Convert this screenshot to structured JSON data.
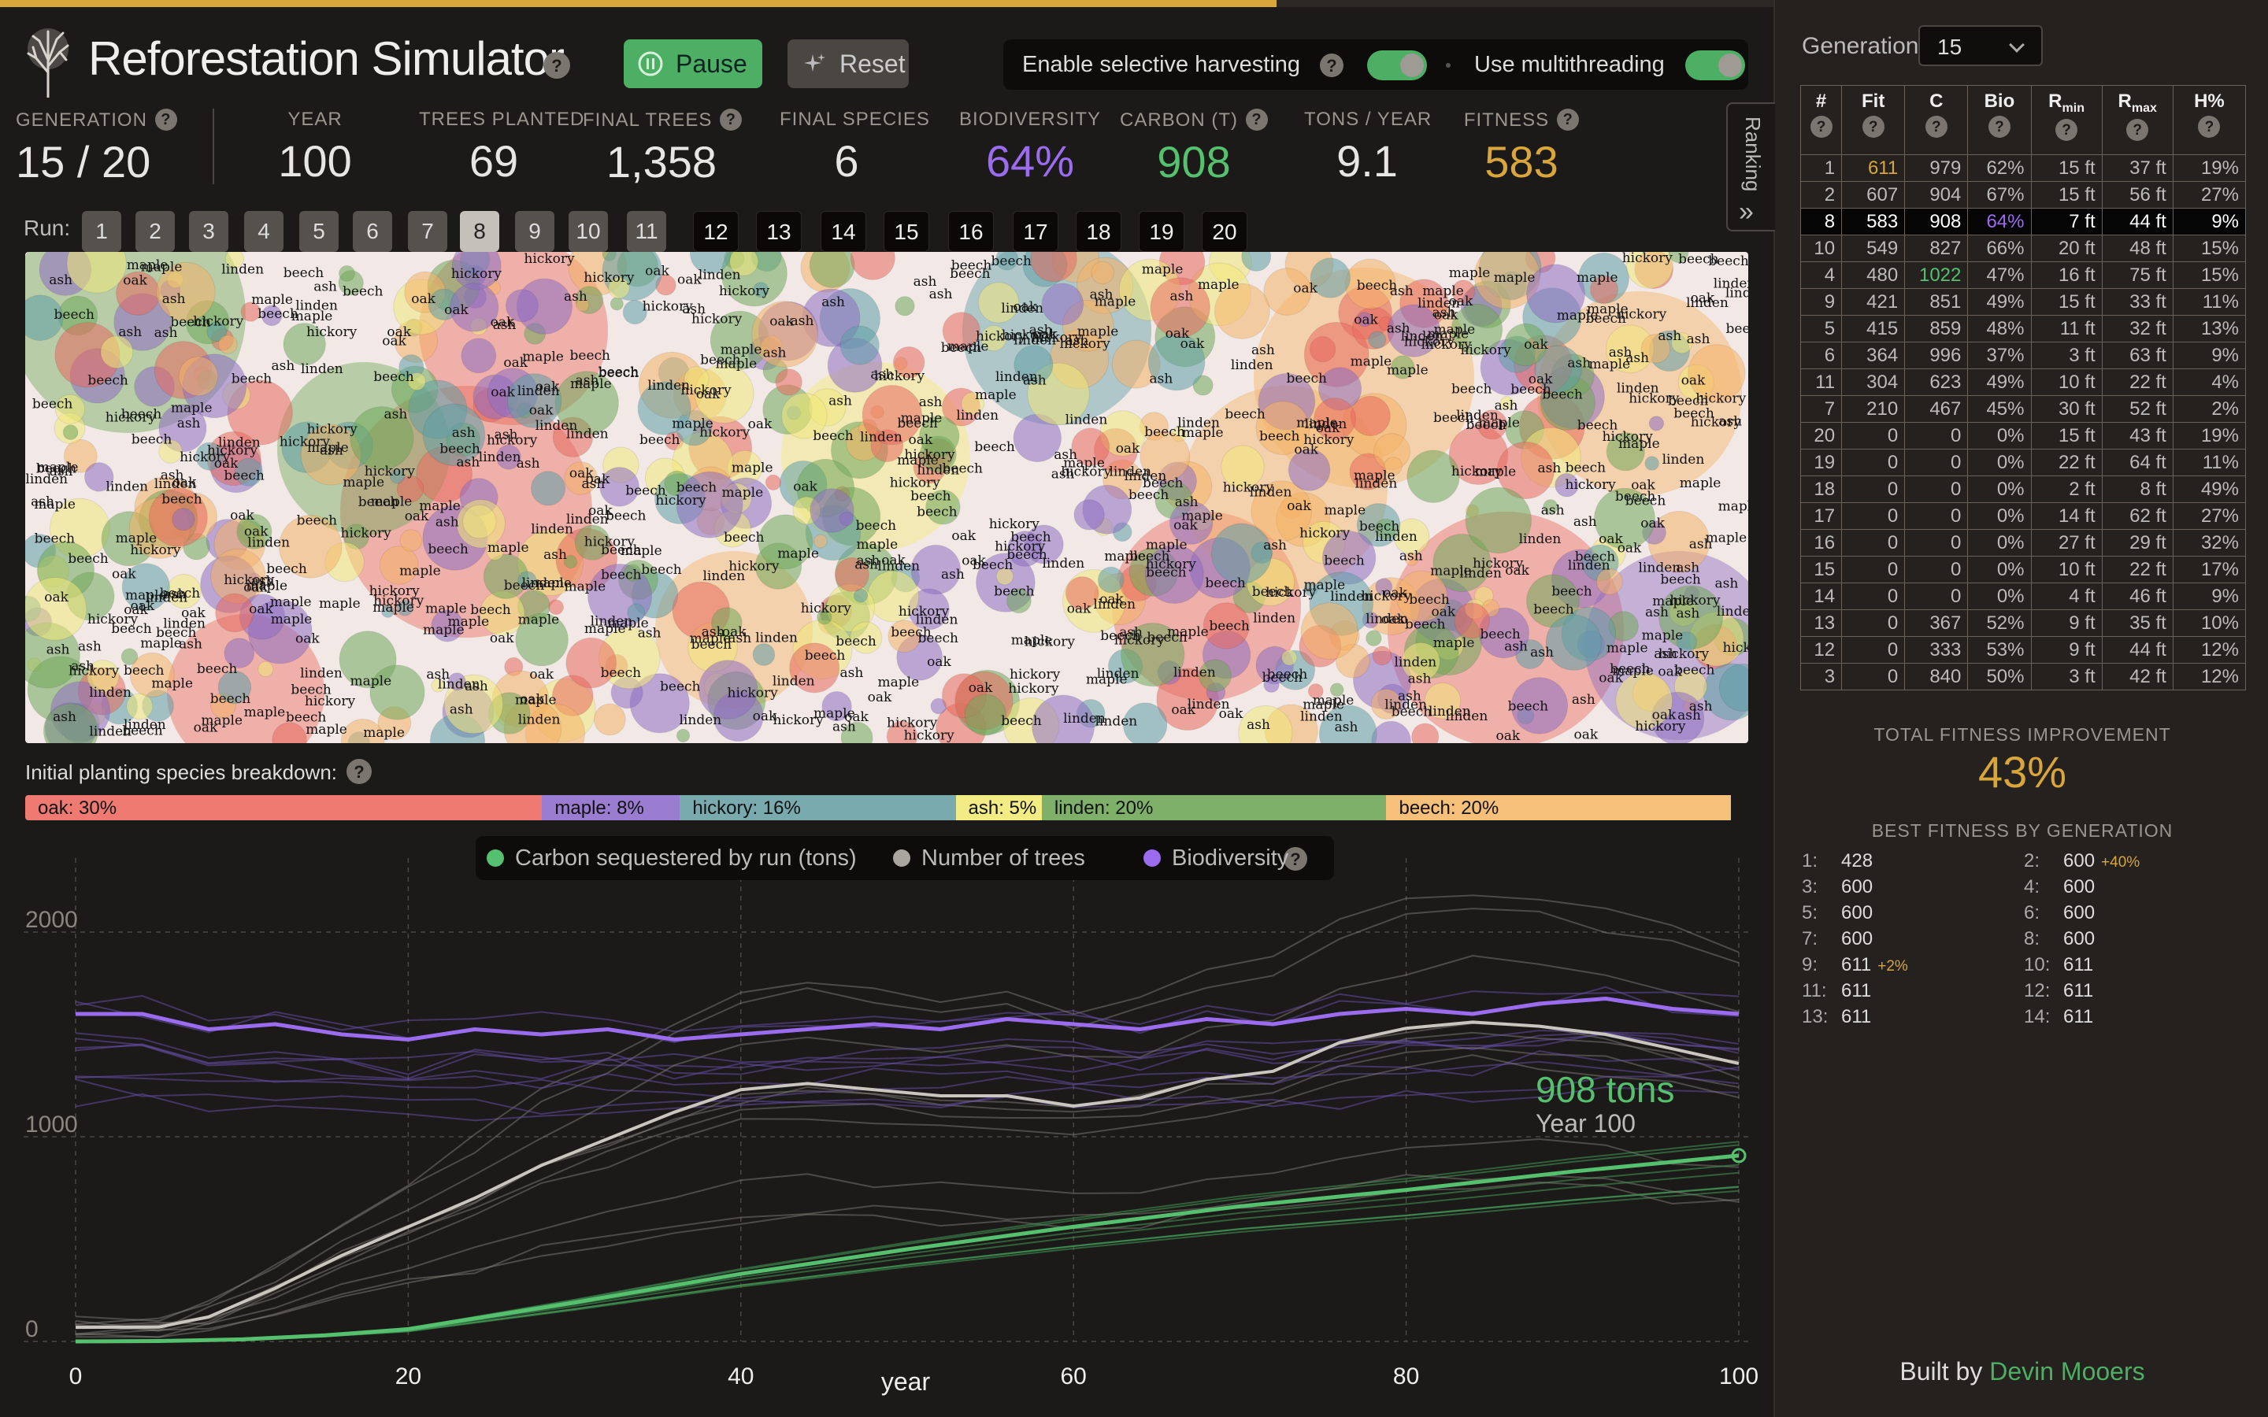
{
  "app": {
    "title": "Reforestation Simulator",
    "progress": 0.72
  },
  "controls": {
    "pause_label": "Pause",
    "reset_label": "Reset",
    "harvest_label": "Enable selective harvesting",
    "harvest_on": true,
    "thread_label": "Use multithreading",
    "thread_on": true
  },
  "stats": [
    {
      "label": "GENERATION",
      "value": "15 / 20",
      "help": true,
      "color": "#e8e6e2"
    },
    {
      "label": "YEAR",
      "value": "100",
      "help": false,
      "color": "#e8e6e2"
    },
    {
      "label": "TREES PLANTED",
      "value": "69",
      "help": false,
      "color": "#e8e6e2"
    },
    {
      "label": "FINAL TREES",
      "value": "1,358",
      "help": true,
      "color": "#e8e6e2"
    },
    {
      "label": "FINAL SPECIES",
      "value": "6",
      "help": false,
      "color": "#e8e6e2"
    },
    {
      "label": "BIODIVERSITY",
      "value": "64%",
      "help": false,
      "color": "#9b6cf0"
    },
    {
      "label": "CARBON (T)",
      "value": "908",
      "help": true,
      "color": "#55c06e"
    },
    {
      "label": "TONS / YEAR",
      "value": "9.1",
      "help": false,
      "color": "#e8e6e2"
    },
    {
      "label": "FITNESS",
      "value": "583",
      "help": true,
      "color": "#d9a63c"
    }
  ],
  "runs": {
    "label": "Run:",
    "items": [
      "1",
      "2",
      "3",
      "4",
      "5",
      "6",
      "7",
      "8",
      "9",
      "10",
      "11",
      "12",
      "13",
      "14",
      "15",
      "16",
      "17",
      "18",
      "19",
      "20"
    ],
    "current": "8",
    "done_count": 11
  },
  "species": [
    {
      "name": "oak",
      "color": "#e86a5e"
    },
    {
      "name": "maple",
      "color": "#8e6dc2"
    },
    {
      "name": "hickory",
      "color": "#5e9ea6"
    },
    {
      "name": "ash",
      "color": "#f1e87a"
    },
    {
      "name": "linden",
      "color": "#6fa85a"
    },
    {
      "name": "beech",
      "color": "#f4b367"
    }
  ],
  "breakdown": {
    "title": "Initial planting species breakdown:",
    "segments": [
      {
        "label": "oak: 30%",
        "pct": 30,
        "color": "#ee7a72"
      },
      {
        "label": "maple: 8%",
        "pct": 8,
        "color": "#9a7cd0"
      },
      {
        "label": "hickory: 16%",
        "pct": 16,
        "color": "#79aaae"
      },
      {
        "label": "ash: 5%",
        "pct": 5,
        "color": "#f3ec85"
      },
      {
        "label": "linden: 20%",
        "pct": 20,
        "color": "#7fb06a"
      },
      {
        "label": "beech: 20%",
        "pct": 20,
        "color": "#f6c07a"
      }
    ]
  },
  "legend": [
    {
      "label": "Carbon sequestered by run (tons)",
      "color": "#55c06e"
    },
    {
      "label": "Number of trees",
      "color": "#a9a6a0"
    },
    {
      "label": "Biodiversity",
      "color": "#9b6cf0"
    }
  ],
  "chart_data": {
    "type": "line",
    "xlabel": "year",
    "xticks": [
      0,
      20,
      40,
      60,
      80,
      100
    ],
    "yticks": [
      0,
      1000,
      2000
    ],
    "xlim": [
      0,
      100
    ],
    "ylim": [
      0,
      2000
    ],
    "annotation": {
      "value": "908 tons",
      "sub": "Year 100"
    },
    "series": [
      {
        "name": "Carbon sequestered by run (tons)",
        "color": "#55c06e",
        "x": [
          0,
          5,
          10,
          15,
          20,
          30,
          40,
          50,
          60,
          70,
          80,
          90,
          100
        ],
        "values": [
          0,
          2,
          10,
          30,
          60,
          190,
          330,
          450,
          560,
          660,
          740,
          830,
          908
        ]
      },
      {
        "name": "Number of trees",
        "color": "#c9c6c0",
        "x": [
          0,
          5,
          8,
          12,
          16,
          20,
          24,
          28,
          32,
          36,
          40,
          44,
          48,
          52,
          56,
          60,
          64,
          68,
          72,
          76,
          80,
          84,
          88,
          92,
          96,
          100
        ],
        "values": [
          69,
          70,
          120,
          260,
          420,
          560,
          700,
          860,
          990,
          1120,
          1230,
          1260,
          1230,
          1200,
          1200,
          1150,
          1190,
          1280,
          1320,
          1460,
          1530,
          1560,
          1540,
          1500,
          1430,
          1358
        ]
      },
      {
        "name": "Biodiversity",
        "color": "#9b6cf0",
        "x": [
          0,
          4,
          8,
          12,
          16,
          20,
          24,
          28,
          32,
          36,
          40,
          44,
          48,
          52,
          56,
          60,
          64,
          68,
          72,
          76,
          80,
          84,
          88,
          92,
          96,
          100
        ],
        "values": [
          64,
          64,
          61,
          62,
          60,
          59,
          61,
          60,
          61,
          59,
          60,
          61,
          62,
          61,
          63,
          62,
          61,
          63,
          62,
          64,
          65,
          64,
          66,
          67,
          65,
          64
        ]
      }
    ]
  },
  "sidebar": {
    "gen_label": "Generation:",
    "gen_value": "15",
    "ranking_tab": "Ranking",
    "table_headers": [
      "#",
      "Fit",
      "C",
      "Bio",
      "Rmin",
      "Rmax",
      "H%"
    ],
    "current_row": "8",
    "rows": [
      [
        "1",
        "611",
        "979",
        "62%",
        "15 ft",
        "37 ft",
        "19%"
      ],
      [
        "2",
        "607",
        "904",
        "67%",
        "15 ft",
        "56 ft",
        "27%"
      ],
      [
        "8",
        "583",
        "908",
        "64%",
        "7 ft",
        "44 ft",
        "9%"
      ],
      [
        "10",
        "549",
        "827",
        "66%",
        "20 ft",
        "48 ft",
        "15%"
      ],
      [
        "4",
        "480",
        "1022",
        "47%",
        "16 ft",
        "75 ft",
        "15%"
      ],
      [
        "9",
        "421",
        "851",
        "49%",
        "15 ft",
        "33 ft",
        "11%"
      ],
      [
        "5",
        "415",
        "859",
        "48%",
        "11 ft",
        "32 ft",
        "13%"
      ],
      [
        "6",
        "364",
        "996",
        "37%",
        "3 ft",
        "63 ft",
        "9%"
      ],
      [
        "11",
        "304",
        "623",
        "49%",
        "10 ft",
        "22 ft",
        "4%"
      ],
      [
        "7",
        "210",
        "467",
        "45%",
        "30 ft",
        "52 ft",
        "2%"
      ],
      [
        "20",
        "0",
        "0",
        "0%",
        "15 ft",
        "43 ft",
        "19%"
      ],
      [
        "19",
        "0",
        "0",
        "0%",
        "22 ft",
        "64 ft",
        "11%"
      ],
      [
        "18",
        "0",
        "0",
        "0%",
        "2 ft",
        "8 ft",
        "49%"
      ],
      [
        "17",
        "0",
        "0",
        "0%",
        "14 ft",
        "62 ft",
        "27%"
      ],
      [
        "16",
        "0",
        "0",
        "0%",
        "27 ft",
        "29 ft",
        "32%"
      ],
      [
        "15",
        "0",
        "0",
        "0%",
        "10 ft",
        "22 ft",
        "17%"
      ],
      [
        "14",
        "0",
        "0",
        "0%",
        "4 ft",
        "46 ft",
        "9%"
      ],
      [
        "13",
        "0",
        "367",
        "52%",
        "9 ft",
        "35 ft",
        "10%"
      ],
      [
        "12",
        "0",
        "333",
        "53%",
        "9 ft",
        "44 ft",
        "12%"
      ],
      [
        "3",
        "0",
        "840",
        "50%",
        "3 ft",
        "42 ft",
        "12%"
      ]
    ],
    "total_fitness_label": "TOTAL FITNESS IMPROVEMENT",
    "total_fitness_value": "43%",
    "best_fitness_label": "BEST FITNESS BY GENERATION",
    "best_fitness": [
      {
        "gen": "1:",
        "value": "428",
        "delta": ""
      },
      {
        "gen": "2:",
        "value": "600",
        "delta": "+40%"
      },
      {
        "gen": "3:",
        "value": "600",
        "delta": ""
      },
      {
        "gen": "4:",
        "value": "600",
        "delta": ""
      },
      {
        "gen": "5:",
        "value": "600",
        "delta": ""
      },
      {
        "gen": "6:",
        "value": "600",
        "delta": ""
      },
      {
        "gen": "7:",
        "value": "600",
        "delta": ""
      },
      {
        "gen": "8:",
        "value": "600",
        "delta": ""
      },
      {
        "gen": "9:",
        "value": "611",
        "delta": "+2%"
      },
      {
        "gen": "10:",
        "value": "611",
        "delta": ""
      },
      {
        "gen": "11:",
        "value": "611",
        "delta": ""
      },
      {
        "gen": "12:",
        "value": "611",
        "delta": ""
      },
      {
        "gen": "13:",
        "value": "611",
        "delta": ""
      },
      {
        "gen": "14:",
        "value": "611",
        "delta": ""
      }
    ],
    "credit_prefix": "Built by ",
    "credit_name": "Devin Mooers"
  }
}
